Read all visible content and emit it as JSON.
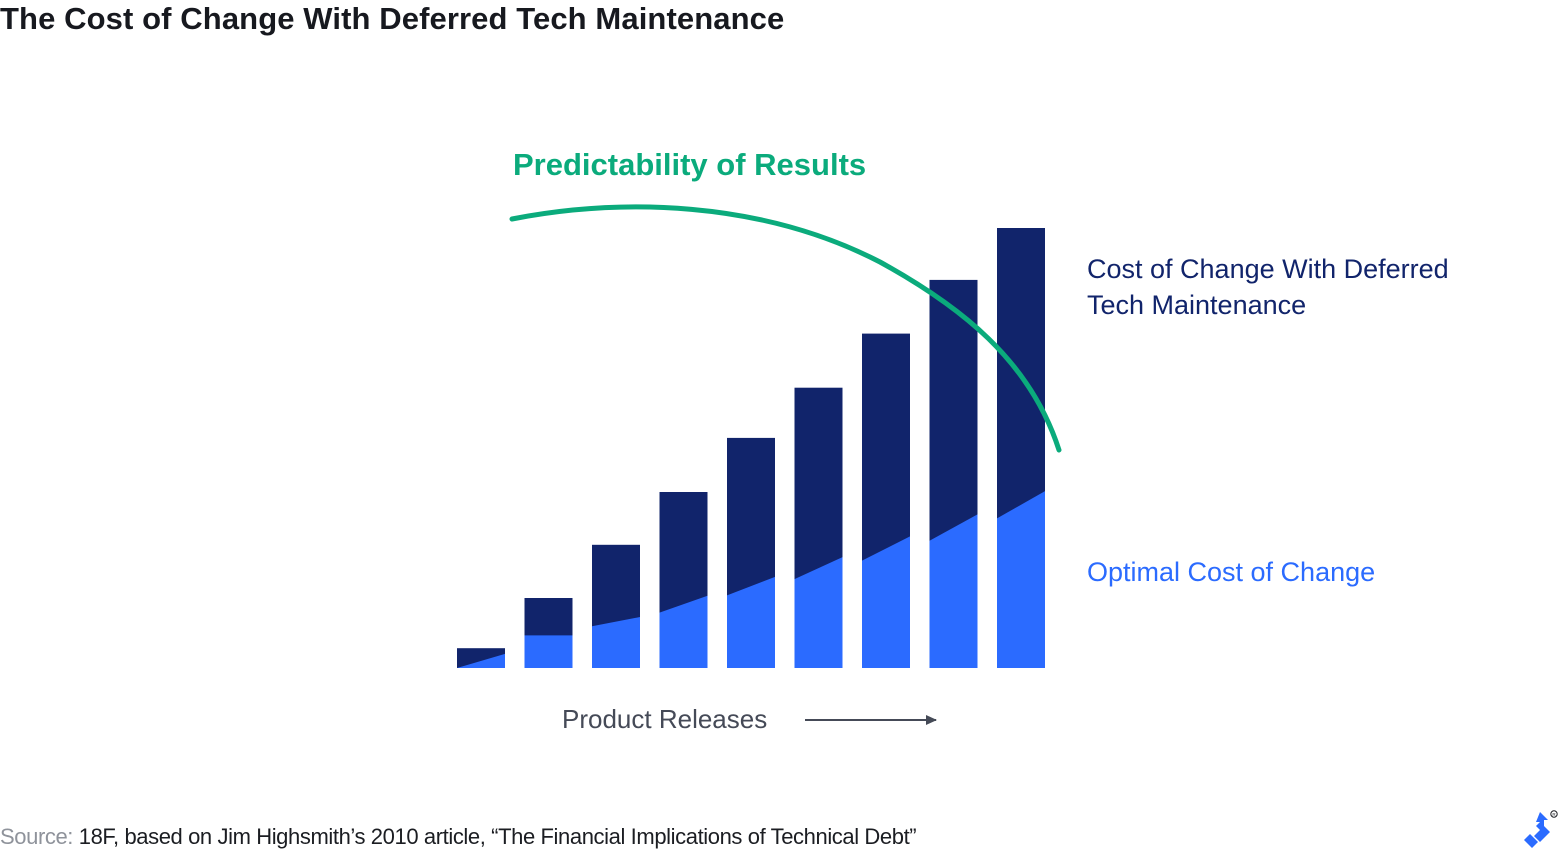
{
  "title": "The Cost of Change With Deferred Tech Maintenance",
  "source": {
    "label": "Source:",
    "text": " 18F, based on Jim Highsmith’s 2010 article, “The Financial Implications of Technical Debt”"
  },
  "colors": {
    "deferred": "#11246b",
    "optimal": "#2b6bff",
    "predictability": "#0bab7c",
    "axis": "#454a57"
  },
  "chart_data": {
    "type": "bar",
    "stacked": true,
    "categories": [
      "",
      "",
      "",
      "",
      "",
      "",
      "",
      "",
      ""
    ],
    "ylim": [
      0,
      100
    ],
    "series": [
      {
        "name": "Optimal Cost of Change",
        "label_lines": [
          "Optimal Cost of Change"
        ],
        "start_values": [
          0,
          7.4,
          9.5,
          12.6,
          16.5,
          20.2,
          24.4,
          28.9,
          34.0
        ],
        "end_values": [
          3.2,
          7.4,
          11.6,
          16.4,
          20.7,
          25.2,
          29.9,
          34.9,
          40.2
        ]
      },
      {
        "name": "Cost of Change With Deferred Tech Maintenance",
        "label_lines": [
          "Cost of Change With Deferred",
          "Tech Maintenance"
        ],
        "totals": [
          4.5,
          15.9,
          28.0,
          40.0,
          52.3,
          63.7,
          76.0,
          88.2,
          100
        ]
      }
    ],
    "trend": {
      "name": "Predictability of Results",
      "shape": "arc peaking early then falling steeply"
    },
    "xlabel": "Product Releases",
    "legend": "right",
    "grid": false
  }
}
